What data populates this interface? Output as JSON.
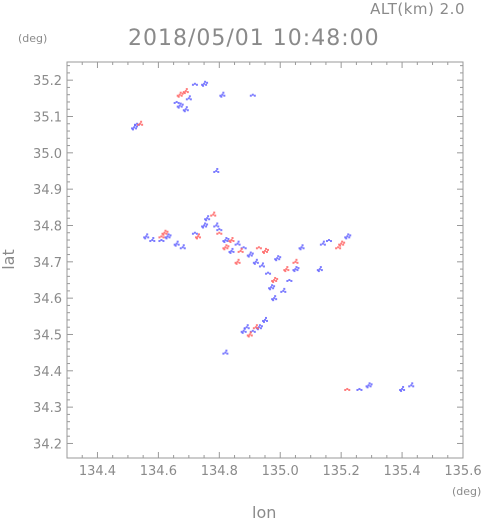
{
  "header": {
    "altitude_label": "ALT(km) 2.0",
    "timestamp": "2018/05/01 10:48:00",
    "y_unit": "(deg)",
    "x_unit": "(deg)"
  },
  "chart_data": {
    "type": "scatter",
    "title": "2018/05/01 10:48:00",
    "xlabel": "lon",
    "ylabel": "lat",
    "xlim": [
      134.3,
      135.6
    ],
    "ylim": [
      34.16,
      35.25
    ],
    "x_ticks": [
      "134.4",
      "134.6",
      "134.8",
      "135.0",
      "135.2",
      "135.4",
      "135.6"
    ],
    "y_ticks": [
      "34.2",
      "34.3",
      "34.4",
      "34.5",
      "34.6",
      "34.7",
      "34.8",
      "34.9",
      "35.0",
      "35.1",
      "35.2"
    ],
    "grid": false,
    "colors": {
      "axis": "#999999",
      "negative": "#6666ff",
      "positive": "#ff6666"
    },
    "series": [
      {
        "values": [
          [
            134.66,
            35.14
          ],
          [
            134.67,
            35.13
          ],
          [
            134.69,
            35.12
          ],
          [
            134.7,
            35.15
          ],
          [
            134.72,
            35.19
          ],
          [
            134.75,
            35.19
          ],
          [
            134.81,
            35.16
          ],
          [
            134.79,
            34.95
          ],
          [
            134.53,
            35.08
          ],
          [
            134.52,
            35.07
          ],
          [
            134.56,
            34.77
          ],
          [
            134.58,
            34.76
          ],
          [
            134.61,
            34.76
          ],
          [
            134.63,
            34.77
          ],
          [
            134.66,
            34.75
          ],
          [
            134.68,
            34.74
          ],
          [
            134.72,
            34.78
          ],
          [
            134.75,
            34.8
          ],
          [
            134.76,
            34.82
          ],
          [
            134.79,
            34.8
          ],
          [
            134.8,
            34.79
          ],
          [
            134.82,
            34.76
          ],
          [
            134.84,
            34.73
          ],
          [
            134.86,
            34.75
          ],
          [
            134.88,
            34.74
          ],
          [
            134.9,
            34.72
          ],
          [
            134.92,
            34.7
          ],
          [
            134.94,
            34.69
          ],
          [
            134.96,
            34.67
          ],
          [
            134.97,
            34.63
          ],
          [
            134.98,
            34.6
          ],
          [
            135.01,
            34.62
          ],
          [
            135.03,
            34.65
          ],
          [
            135.05,
            34.68
          ],
          [
            135.13,
            34.68
          ],
          [
            135.14,
            34.75
          ],
          [
            135.16,
            34.76
          ],
          [
            135.22,
            34.77
          ],
          [
            134.88,
            34.51
          ],
          [
            134.89,
            34.52
          ],
          [
            134.91,
            34.51
          ],
          [
            134.93,
            34.52
          ],
          [
            134.95,
            34.54
          ],
          [
            134.82,
            34.45
          ],
          [
            135.26,
            34.35
          ],
          [
            135.29,
            34.36
          ],
          [
            135.4,
            34.35
          ],
          [
            135.43,
            34.36
          ],
          [
            134.91,
            35.16
          ],
          [
            134.99,
            34.71
          ],
          [
            135.07,
            34.74
          ]
        ]
      },
      {
        "values": [
          [
            134.67,
            35.16
          ],
          [
            134.69,
            35.17
          ],
          [
            134.54,
            35.08
          ],
          [
            134.61,
            34.77
          ],
          [
            134.62,
            34.78
          ],
          [
            134.73,
            34.77
          ],
          [
            134.78,
            34.83
          ],
          [
            134.8,
            34.78
          ],
          [
            134.82,
            34.74
          ],
          [
            134.84,
            34.76
          ],
          [
            134.87,
            34.73
          ],
          [
            134.93,
            34.74
          ],
          [
            134.95,
            34.73
          ],
          [
            135.02,
            34.68
          ],
          [
            135.05,
            34.7
          ],
          [
            135.19,
            34.74
          ],
          [
            135.2,
            34.75
          ],
          [
            134.9,
            34.5
          ],
          [
            134.92,
            34.52
          ],
          [
            135.22,
            34.35
          ],
          [
            134.98,
            34.65
          ],
          [
            134.86,
            34.7
          ]
        ]
      }
    ]
  }
}
